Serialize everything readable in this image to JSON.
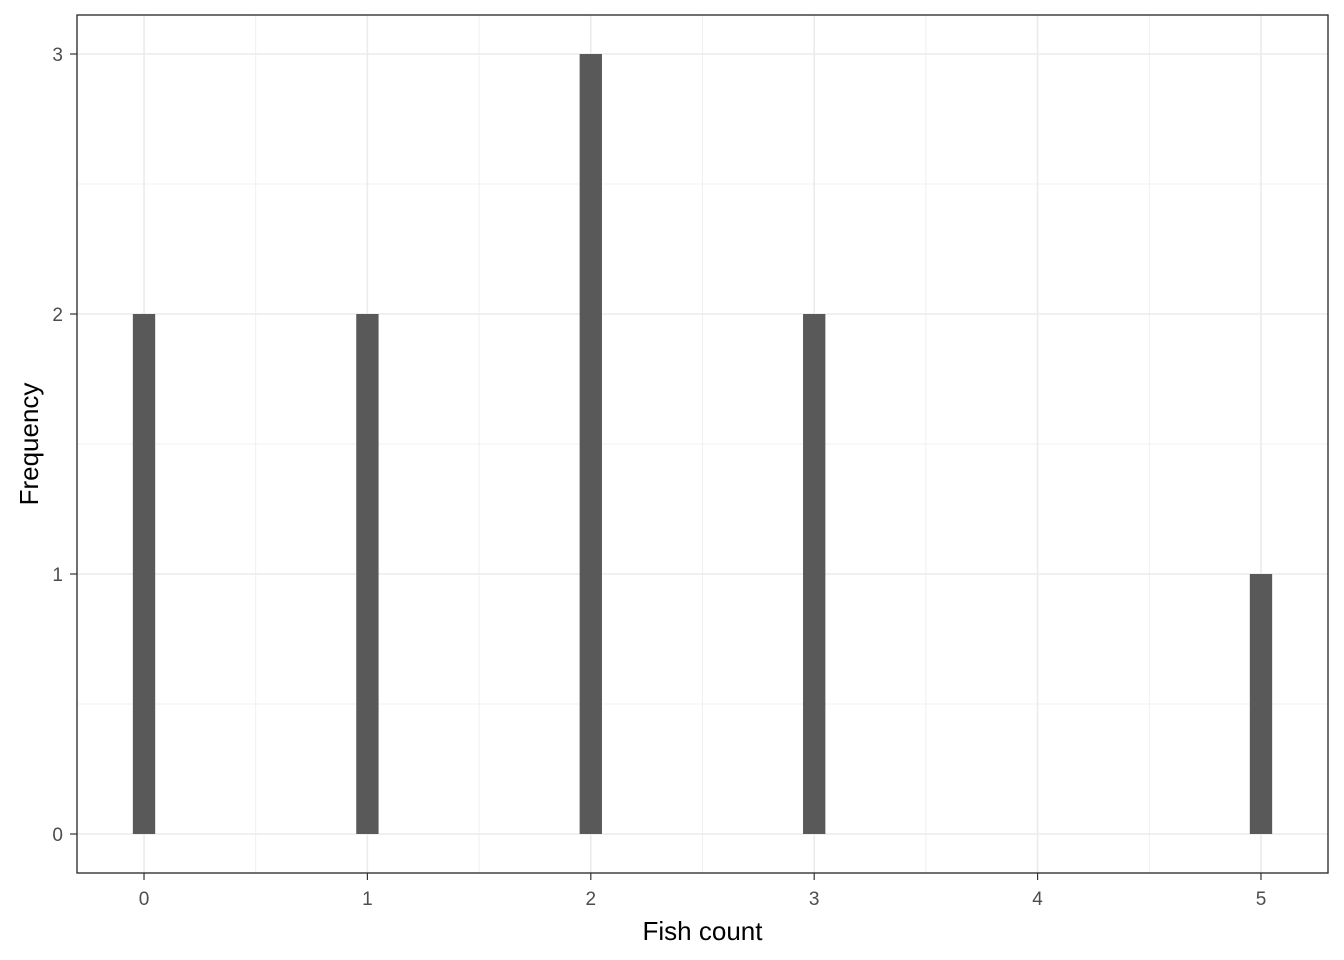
{
  "chart_data": {
    "type": "bar",
    "x": [
      0,
      1,
      2,
      3,
      5
    ],
    "values": [
      2,
      2,
      3,
      2,
      1
    ],
    "xlabel": "Fish count",
    "ylabel": "Frequency",
    "xlim": [
      -0.3,
      5.3
    ],
    "ylim": [
      -0.15,
      3.15
    ],
    "x_ticks": [
      0,
      1,
      2,
      3,
      4,
      5
    ],
    "y_ticks": [
      0,
      1,
      2,
      3
    ],
    "bar_width": 0.1,
    "grid": true,
    "colors": {
      "bar": "#595959",
      "grid": "#ebebeb",
      "panel_border": "#333333",
      "tick_label": "#4d4d4d"
    }
  }
}
